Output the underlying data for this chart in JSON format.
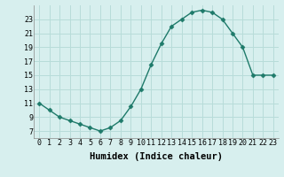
{
  "x": [
    0,
    1,
    2,
    3,
    4,
    5,
    6,
    7,
    8,
    9,
    10,
    11,
    12,
    13,
    14,
    15,
    16,
    17,
    18,
    19,
    20,
    21,
    22,
    23
  ],
  "y": [
    11,
    10,
    9,
    8.5,
    8,
    7.5,
    7,
    7.5,
    8.5,
    10.5,
    13,
    16.5,
    19.5,
    22,
    23,
    24,
    24.3,
    24,
    23,
    21,
    19,
    15,
    15,
    15
  ],
  "line_color": "#1e7a6a",
  "marker": "D",
  "marker_size": 2.5,
  "bg_color": "#d7efee",
  "grid_color": "#b8dcd9",
  "xlim": [
    -0.5,
    23.5
  ],
  "ylim": [
    6,
    25
  ],
  "xticks": [
    0,
    1,
    2,
    3,
    4,
    5,
    6,
    7,
    8,
    9,
    10,
    11,
    12,
    13,
    14,
    15,
    16,
    17,
    18,
    19,
    20,
    21,
    22,
    23
  ],
  "yticks": [
    7,
    9,
    11,
    13,
    15,
    17,
    19,
    21,
    23
  ],
  "xlabel": "Humidex (Indice chaleur)",
  "xlabel_fontsize": 7.5,
  "tick_fontsize": 6,
  "linewidth": 1.0
}
